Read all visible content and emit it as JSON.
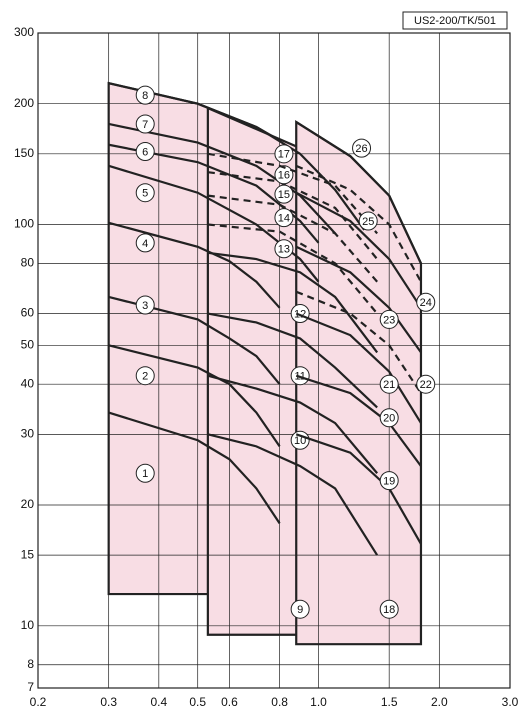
{
  "chart_data": {
    "type": "line",
    "title": "US2-200/TK/501",
    "log_x": true,
    "log_y": true,
    "grid": true,
    "xlim": [
      0.2,
      3.0
    ],
    "ylim": [
      7,
      300
    ],
    "xticks": [
      0.2,
      0.3,
      0.4,
      0.5,
      0.6,
      0.8,
      {
        "value": 1,
        "label": "1.0"
      },
      1.5,
      {
        "value": 2,
        "label": "2.0"
      },
      {
        "value": 3,
        "label": "3.0"
      }
    ],
    "yticks": [
      7,
      8,
      10,
      15,
      20,
      30,
      40,
      50,
      60,
      80,
      100,
      150,
      200,
      300
    ],
    "region_color": "#f8dde4",
    "regions": [
      {
        "x": [
          0.3,
          0.3,
          0.5,
          0.7,
          0.8,
          0.8
        ],
        "y": [
          12,
          225,
          200,
          175,
          162,
          12
        ]
      },
      {
        "x": [
          0.53,
          0.53,
          0.9,
          1.1,
          1.4,
          1.4
        ],
        "y": [
          9.5,
          195,
          155,
          125,
          95,
          9.5
        ]
      },
      {
        "x": [
          0.88,
          0.88,
          1.2,
          1.5,
          1.8,
          1.8
        ],
        "y": [
          9,
          180,
          148,
          118,
          80,
          9
        ]
      }
    ],
    "series": [
      {
        "name": "1",
        "color": "#222",
        "x": [
          0.3,
          0.5,
          0.6,
          0.7,
          0.8
        ],
        "values": [
          34,
          29,
          26,
          22,
          18
        ]
      },
      {
        "name": "2",
        "color": "#222",
        "x": [
          0.3,
          0.5,
          0.6,
          0.7,
          0.8
        ],
        "values": [
          50,
          44,
          40,
          34,
          28
        ]
      },
      {
        "name": "3",
        "color": "#222",
        "x": [
          0.3,
          0.5,
          0.6,
          0.7,
          0.8
        ],
        "values": [
          66,
          58,
          52,
          47,
          40
        ]
      },
      {
        "name": "4",
        "color": "#222",
        "x": [
          0.3,
          0.5,
          0.6,
          0.7,
          0.8
        ],
        "values": [
          101,
          88,
          81,
          72,
          62
        ]
      },
      {
        "name": "5",
        "color": "#222",
        "x": [
          0.3,
          0.5,
          0.7,
          0.9,
          1.0
        ],
        "values": [
          140,
          120,
          100,
          82,
          72
        ]
      },
      {
        "name": "6",
        "color": "#222",
        "x": [
          0.3,
          0.5,
          0.7,
          0.9,
          1.0
        ],
        "values": [
          158,
          143,
          125,
          102,
          90
        ]
      },
      {
        "name": "7",
        "color": "#222",
        "x": [
          0.3,
          0.5,
          0.7,
          0.9,
          1.1
        ],
        "values": [
          178,
          160,
          140,
          118,
          95
        ]
      },
      {
        "name": "8",
        "color": "#222",
        "x": [
          0.3,
          0.5,
          0.7,
          0.9,
          1.1,
          1.3
        ],
        "values": [
          225,
          200,
          175,
          150,
          122,
          97
        ]
      },
      {
        "name": "9",
        "color": "#222",
        "x": [],
        "values": []
      },
      {
        "name": "10",
        "color": "#222",
        "x": [
          0.53,
          0.7,
          0.9,
          1.1,
          1.4
        ],
        "values": [
          30,
          28,
          25,
          22,
          15
        ]
      },
      {
        "name": "11",
        "color": "#222",
        "x": [
          0.53,
          0.7,
          0.9,
          1.1,
          1.4
        ],
        "values": [
          42,
          39,
          36,
          32,
          24
        ]
      },
      {
        "name": "12",
        "color": "#222",
        "x": [
          0.53,
          0.7,
          0.9,
          1.1,
          1.4
        ],
        "values": [
          60,
          57,
          52,
          44,
          35
        ]
      },
      {
        "name": "13",
        "color": "#222",
        "x": [
          0.53,
          0.7,
          0.9,
          1.1,
          1.4
        ],
        "values": [
          85,
          82,
          76,
          66,
          48
        ]
      },
      {
        "name": "14",
        "color": "#222",
        "dashed": true,
        "x": [
          0.53,
          0.8,
          1.1,
          1.4
        ],
        "values": [
          100,
          96,
          80,
          60
        ]
      },
      {
        "name": "15",
        "color": "#222",
        "dashed": true,
        "x": [
          0.53,
          0.8,
          1.1,
          1.4
        ],
        "values": [
          118,
          112,
          95,
          72
        ]
      },
      {
        "name": "16",
        "color": "#222",
        "dashed": true,
        "x": [
          0.53,
          0.8,
          1.1,
          1.4
        ],
        "values": [
          135,
          128,
          110,
          82
        ]
      },
      {
        "name": "17",
        "color": "#222",
        "dashed": true,
        "x": [
          0.53,
          0.8,
          1.1,
          1.4
        ],
        "values": [
          150,
          140,
          125,
          95
        ]
      },
      {
        "name": "18",
        "color": "#222",
        "x": [],
        "values": []
      },
      {
        "name": "19",
        "color": "#222",
        "x": [
          0.88,
          1.2,
          1.5,
          1.8
        ],
        "values": [
          30,
          27,
          22,
          16
        ]
      },
      {
        "name": "20",
        "color": "#222",
        "x": [
          0.88,
          1.2,
          1.5,
          1.8
        ],
        "values": [
          42,
          38,
          32,
          25
        ]
      },
      {
        "name": "21",
        "color": "#222",
        "x": [
          0.88,
          1.2,
          1.5,
          1.8
        ],
        "values": [
          60,
          53,
          43,
          32
        ]
      },
      {
        "name": "22",
        "color": "#222",
        "dashed": true,
        "x": [
          0.88,
          1.2,
          1.5,
          1.8
        ],
        "values": [
          68,
          60,
          50,
          38
        ]
      },
      {
        "name": "23",
        "color": "#222",
        "x": [
          0.88,
          1.2,
          1.5,
          1.8
        ],
        "values": [
          88,
          76,
          62,
          48
        ]
      },
      {
        "name": "24",
        "color": "#222",
        "x": [
          0.88,
          1.2,
          1.5,
          1.8
        ],
        "values": [
          120,
          102,
          82,
          62
        ]
      },
      {
        "name": "25",
        "color": "#222",
        "dashed": true,
        "x": [
          0.88,
          1.2,
          1.5,
          1.8
        ],
        "values": [
          140,
          122,
          100,
          72
        ]
      },
      {
        "name": "26",
        "color": "#222",
        "x": [
          0.88,
          1.2,
          1.5,
          1.8
        ],
        "values": [
          180,
          148,
          118,
          80
        ]
      }
    ]
  }
}
